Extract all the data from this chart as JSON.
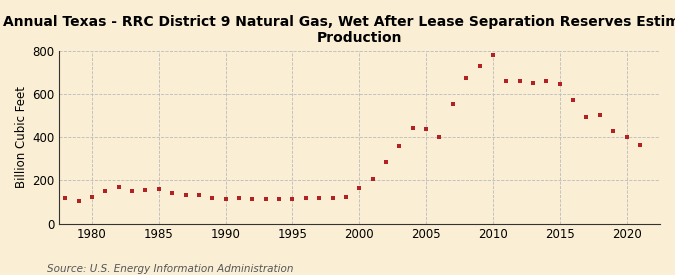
{
  "title": "Annual Texas - RRC District 9 Natural Gas, Wet After Lease Separation Reserves Estimated\nProduction",
  "ylabel": "Billion Cubic Feet",
  "source": "Source: U.S. Energy Information Administration",
  "background_color": "#faefd4",
  "plot_background_color": "#faefd4",
  "marker_color": "#b22222",
  "years": [
    1978,
    1979,
    1980,
    1981,
    1982,
    1983,
    1984,
    1985,
    1986,
    1987,
    1988,
    1989,
    1990,
    1991,
    1992,
    1993,
    1994,
    1995,
    1996,
    1997,
    1998,
    1999,
    2000,
    2001,
    2002,
    2003,
    2004,
    2005,
    2006,
    2007,
    2008,
    2009,
    2010,
    2011,
    2012,
    2013,
    2014,
    2015,
    2016,
    2017,
    2018,
    2019,
    2020,
    2021
  ],
  "values": [
    120,
    105,
    125,
    150,
    170,
    150,
    155,
    160,
    140,
    130,
    130,
    120,
    115,
    120,
    115,
    115,
    115,
    115,
    120,
    120,
    120,
    125,
    165,
    205,
    285,
    360,
    440,
    435,
    400,
    555,
    675,
    730,
    780,
    660,
    660,
    650,
    660,
    645,
    570,
    495,
    500,
    430,
    400,
    365
  ],
  "xlim": [
    1977.5,
    2022.5
  ],
  "ylim": [
    0,
    800
  ],
  "yticks": [
    0,
    200,
    400,
    600,
    800
  ],
  "xticks": [
    1980,
    1985,
    1990,
    1995,
    2000,
    2005,
    2010,
    2015,
    2020
  ],
  "grid_color": "#bbbbbb",
  "grid_linestyle": "--",
  "grid_linewidth": 0.6,
  "title_fontsize": 10,
  "axis_fontsize": 8.5,
  "source_fontsize": 7.5
}
